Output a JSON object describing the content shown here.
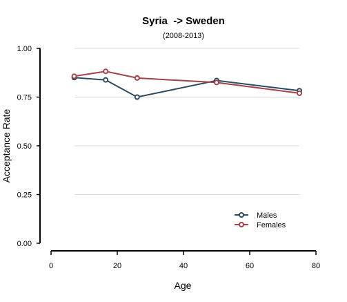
{
  "chart_data": {
    "type": "line",
    "title": "Syria  -> Sweden",
    "subtitle": "(2008-2013)",
    "xlabel": "Age",
    "ylabel": "Acceptance Rate",
    "xlim": [
      0,
      80
    ],
    "ylim": [
      0,
      1
    ],
    "x_ticks": [
      0,
      20,
      40,
      60,
      80
    ],
    "x_tick_labels": [
      "0",
      "20",
      "40",
      "60",
      "80"
    ],
    "y_ticks": [
      0,
      0.25,
      0.5,
      0.75,
      1
    ],
    "y_tick_labels": [
      "0.00",
      "0.25",
      "0.50",
      "0.75",
      "1.00"
    ],
    "grid": "horizontal",
    "legend_position": "bottom-right",
    "series": [
      {
        "name": "Males",
        "color": "#2e4a62",
        "x": [
          7,
          16.5,
          26,
          50,
          75
        ],
        "y": [
          0.85,
          0.838,
          0.75,
          0.835,
          0.783
        ]
      },
      {
        "name": "Females",
        "color": "#a0434a",
        "x": [
          7,
          16.5,
          26,
          50,
          75
        ],
        "y": [
          0.857,
          0.882,
          0.848,
          0.825,
          0.77
        ]
      }
    ]
  }
}
